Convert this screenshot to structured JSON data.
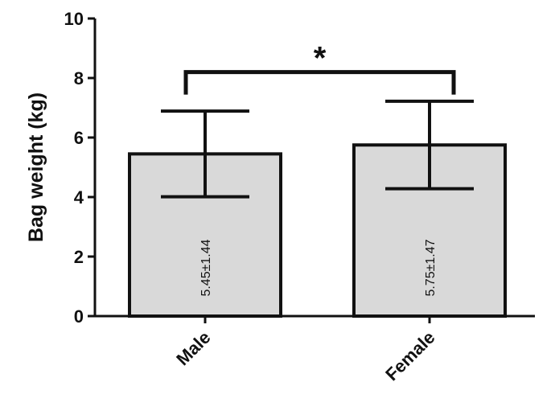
{
  "chart_data": {
    "type": "bar",
    "ylabel": "Bag weight (kg)",
    "xlabel": "",
    "ylim": [
      0,
      10
    ],
    "yticks": [
      0,
      2,
      4,
      6,
      8,
      10
    ],
    "ytick_labels": [
      "0",
      "2",
      "4",
      "6",
      "8",
      "10"
    ],
    "categories": [
      "Male",
      "Female"
    ],
    "values": [
      5.45,
      5.75
    ],
    "errors": [
      1.44,
      1.47
    ],
    "data_labels": [
      "5.45±1.44",
      "5.75±1.47"
    ],
    "bar_color": "#d9d9d9",
    "edge_color": "#111111",
    "significance": {
      "pair": [
        0,
        1
      ],
      "label": "*",
      "level": 8.2
    },
    "grid": false,
    "legend": "none"
  }
}
